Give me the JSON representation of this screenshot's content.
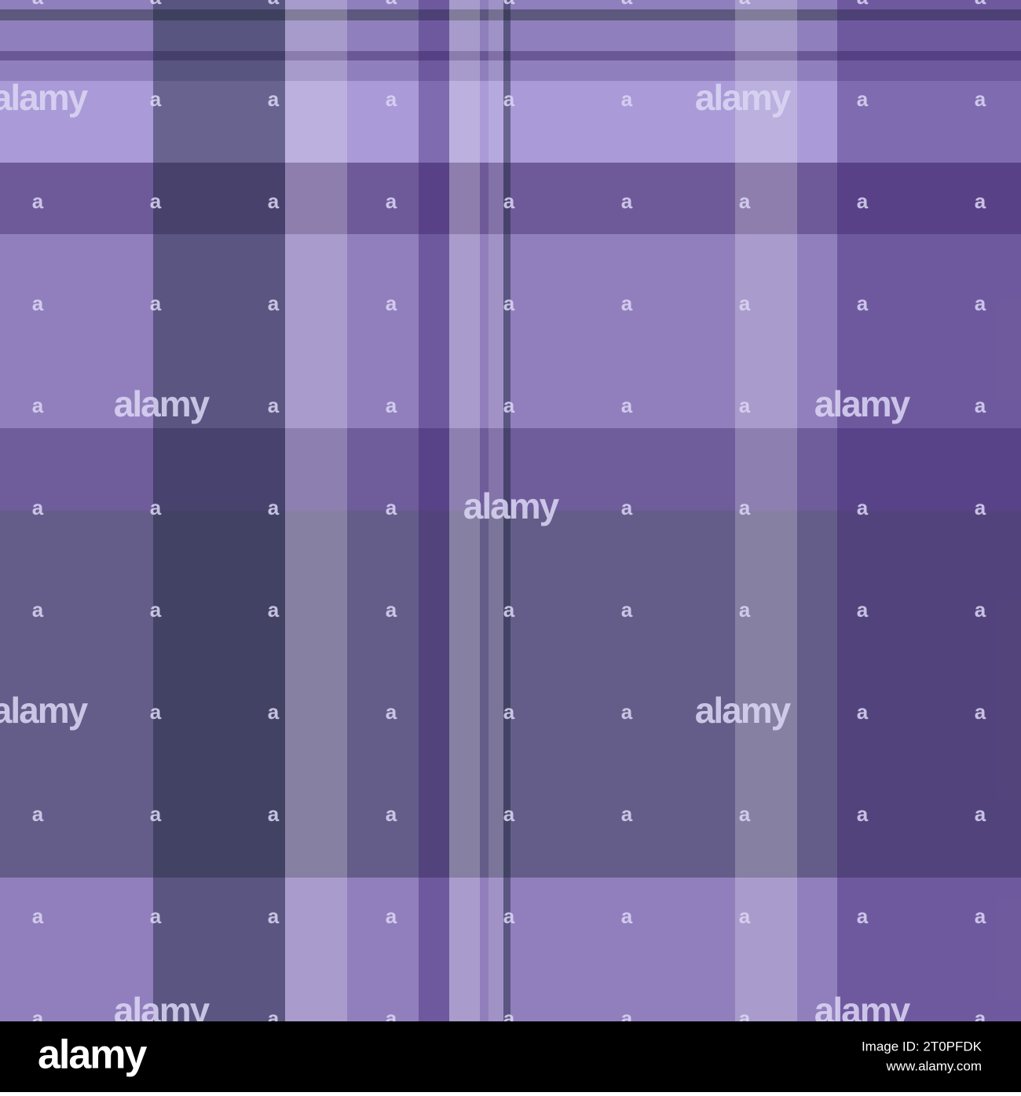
{
  "watermark": "alamy",
  "watermark_small": "a",
  "footer": {
    "logo": "alamy",
    "image_id": "Image ID: 2T0PFDK",
    "url": "www.alamy.com"
  }
}
